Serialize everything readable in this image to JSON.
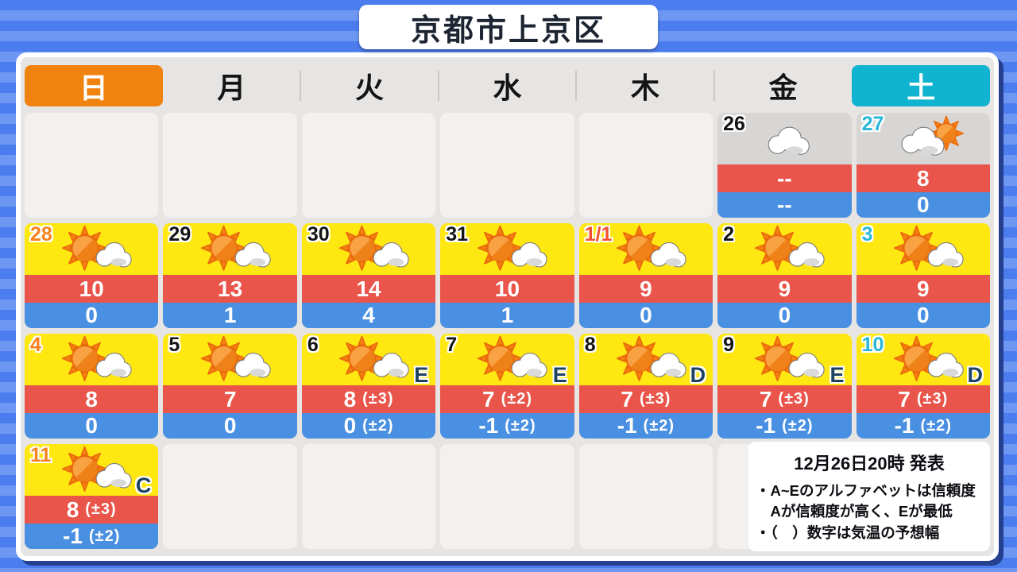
{
  "title": "京都市上京区",
  "weekday_header": {
    "items": [
      {
        "label": "日",
        "style": "sunday"
      },
      {
        "label": "月",
        "style": "weekday"
      },
      {
        "label": "火",
        "style": "weekday"
      },
      {
        "label": "水",
        "style": "weekday"
      },
      {
        "label": "木",
        "style": "weekday"
      },
      {
        "label": "金",
        "style": "weekday"
      },
      {
        "label": "土",
        "style": "saturday"
      }
    ]
  },
  "calendar": {
    "rows": [
      [
        null,
        null,
        null,
        null,
        null,
        {
          "day": "26",
          "day_style": "weekday",
          "bg": "gray",
          "icon_type": "cloud",
          "high": "--",
          "low": "--"
        },
        {
          "day": "27",
          "day_style": "saturday",
          "bg": "gray",
          "icon_type": "cloud-sun",
          "high": "8",
          "low": "0"
        }
      ],
      [
        {
          "day": "28",
          "day_style": "sunday",
          "bg": "yellow",
          "icon_type": "sun-cloud",
          "high": "10",
          "low": "0"
        },
        {
          "day": "29",
          "day_style": "weekday",
          "bg": "yellow",
          "icon_type": "sun-cloud",
          "high": "13",
          "low": "1"
        },
        {
          "day": "30",
          "day_style": "weekday",
          "bg": "yellow",
          "icon_type": "sun-cloud",
          "high": "14",
          "low": "4"
        },
        {
          "day": "31",
          "day_style": "weekday",
          "bg": "yellow",
          "icon_type": "sun-cloud",
          "high": "10",
          "low": "1"
        },
        {
          "day": "1/1",
          "day_style": "holiday",
          "bg": "yellow",
          "icon_type": "sun-cloud",
          "high": "9",
          "low": "0"
        },
        {
          "day": "2",
          "day_style": "weekday",
          "bg": "yellow",
          "icon_type": "sun-cloud",
          "high": "9",
          "low": "0"
        },
        {
          "day": "3",
          "day_style": "saturday",
          "bg": "yellow",
          "icon_type": "sun-cloud",
          "high": "9",
          "low": "0"
        }
      ],
      [
        {
          "day": "4",
          "day_style": "sunday",
          "bg": "yellow",
          "icon_type": "sun-cloud",
          "high": "8",
          "low": "0"
        },
        {
          "day": "5",
          "day_style": "weekday",
          "bg": "yellow",
          "icon_type": "sun-cloud",
          "high": "7",
          "low": "0"
        },
        {
          "day": "6",
          "day_style": "weekday",
          "bg": "yellow",
          "icon_type": "sun-cloud",
          "confidence": "E",
          "high": "8",
          "high_range": "(±3)",
          "low": "0",
          "low_range": "(±2)"
        },
        {
          "day": "7",
          "day_style": "weekday",
          "bg": "yellow",
          "icon_type": "sun-cloud",
          "confidence": "E",
          "high": "7",
          "high_range": "(±2)",
          "low": "-1",
          "low_range": "(±2)"
        },
        {
          "day": "8",
          "day_style": "weekday",
          "bg": "yellow",
          "icon_type": "sun-cloud",
          "confidence": "D",
          "high": "7",
          "high_range": "(±3)",
          "low": "-1",
          "low_range": "(±2)"
        },
        {
          "day": "9",
          "day_style": "weekday",
          "bg": "yellow",
          "icon_type": "sun-cloud",
          "confidence": "E",
          "high": "7",
          "high_range": "(±3)",
          "low": "-1",
          "low_range": "(±2)"
        },
        {
          "day": "10",
          "day_style": "saturday",
          "bg": "yellow",
          "icon_type": "sun-cloud",
          "confidence": "D",
          "high": "7",
          "high_range": "(±3)",
          "low": "-1",
          "low_range": "(±2)"
        }
      ],
      [
        {
          "day": "11",
          "day_style": "sunday",
          "bg": "yellow",
          "icon_type": "sun-cloud",
          "confidence": "C",
          "high": "8",
          "high_range": "(±3)",
          "low": "-1",
          "low_range": "(±2)"
        },
        null,
        null,
        null,
        null,
        null,
        null
      ]
    ]
  },
  "notice": {
    "issued": "12月26日20時 発表",
    "lines": [
      "・A~Eのアルファベットは信頼度",
      "　Aが信頼度が高く、Eが最低",
      "・（　）数字は気温の予想幅"
    ]
  },
  "colors": {
    "sunday_orange": "#f0830f",
    "saturday_cyan": "#10b4d0",
    "holiday_red": "#f4512e",
    "cell_yellow": "#ffe712",
    "cell_gray": "#d8d6d4",
    "high_bar_red": "#e9544b",
    "low_bar_blue": "#4a90e2",
    "confidence_navy": "#1e425f",
    "background_blue": "#4c7def"
  },
  "chart_data": {
    "type": "table",
    "title": "京都市上京区",
    "issued": "12月26日20時 発表",
    "columns": [
      "日",
      "月",
      "火",
      "水",
      "木",
      "金",
      "土"
    ],
    "legend_notes": [
      "A~Eのアルファベットは信頼度、Aが信頼度が高く、Eが最低",
      "（　）数字は気温の予想幅"
    ],
    "rows": [
      {
        "date": "26",
        "dow": "金",
        "weather": "cloudy",
        "high": null,
        "low": null
      },
      {
        "date": "27",
        "dow": "土",
        "weather": "cloudy-then-sunny",
        "high": 8,
        "low": 0
      },
      {
        "date": "28",
        "dow": "日",
        "weather": "sunny-then-cloudy",
        "high": 10,
        "low": 0
      },
      {
        "date": "29",
        "dow": "月",
        "weather": "sunny-then-cloudy",
        "high": 13,
        "low": 1
      },
      {
        "date": "30",
        "dow": "火",
        "weather": "sunny-then-cloudy",
        "high": 14,
        "low": 4
      },
      {
        "date": "31",
        "dow": "水",
        "weather": "sunny-then-cloudy",
        "high": 10,
        "low": 1
      },
      {
        "date": "1/1",
        "dow": "木",
        "weather": "sunny-then-cloudy",
        "high": 9,
        "low": 0
      },
      {
        "date": "2",
        "dow": "金",
        "weather": "sunny-then-cloudy",
        "high": 9,
        "low": 0
      },
      {
        "date": "3",
        "dow": "土",
        "weather": "sunny-then-cloudy",
        "high": 9,
        "low": 0
      },
      {
        "date": "4",
        "dow": "日",
        "weather": "sunny-then-cloudy",
        "high": 8,
        "low": 0
      },
      {
        "date": "5",
        "dow": "月",
        "weather": "sunny-then-cloudy",
        "high": 7,
        "low": 0
      },
      {
        "date": "6",
        "dow": "火",
        "weather": "sunny-then-cloudy",
        "high": 8,
        "high_range": "±3",
        "low": 0,
        "low_range": "±2",
        "confidence": "E"
      },
      {
        "date": "7",
        "dow": "水",
        "weather": "sunny-then-cloudy",
        "high": 7,
        "high_range": "±2",
        "low": -1,
        "low_range": "±2",
        "confidence": "E"
      },
      {
        "date": "8",
        "dow": "木",
        "weather": "sunny-then-cloudy",
        "high": 7,
        "high_range": "±3",
        "low": -1,
        "low_range": "±2",
        "confidence": "D"
      },
      {
        "date": "9",
        "dow": "金",
        "weather": "sunny-then-cloudy",
        "high": 7,
        "high_range": "±3",
        "low": -1,
        "low_range": "±2",
        "confidence": "E"
      },
      {
        "date": "10",
        "dow": "土",
        "weather": "sunny-then-cloudy",
        "high": 7,
        "high_range": "±3",
        "low": -1,
        "low_range": "±2",
        "confidence": "D"
      },
      {
        "date": "11",
        "dow": "日",
        "weather": "sunny-then-cloudy",
        "high": 8,
        "high_range": "±3",
        "low": -1,
        "low_range": "±2",
        "confidence": "C"
      }
    ]
  }
}
